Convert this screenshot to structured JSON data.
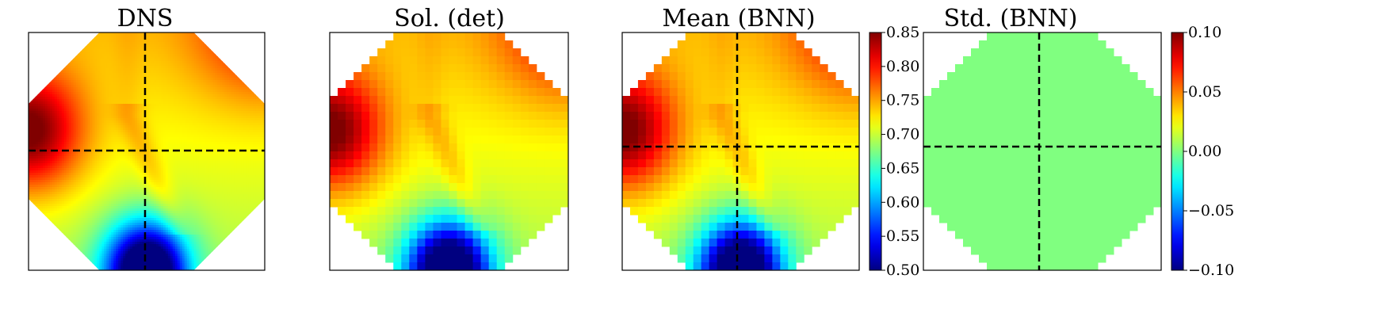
{
  "chart_data": [
    {
      "type": "heatmap",
      "title": "DNS",
      "field": "smooth",
      "clip_shape": "octagon",
      "colormap": "jet",
      "value_range": [
        0.5,
        0.85
      ],
      "crosshair": "dashed lines at domain centre"
    },
    {
      "type": "heatmap",
      "title": "Sol. (det)",
      "field": "pixelated",
      "clip_shape": "stepped octagon",
      "colormap": "jet",
      "value_range": [
        0.5,
        0.85
      ],
      "crosshair": "none"
    },
    {
      "type": "heatmap",
      "title": "Mean (BNN)",
      "field": "pixelated",
      "clip_shape": "stepped octagon",
      "colormap": "jet",
      "value_range": [
        0.5,
        0.85
      ],
      "crosshair": "dashed lines",
      "colorbar": {
        "range": [
          0.5,
          0.85
        ],
        "ticks": [
          0.5,
          0.55,
          0.6,
          0.65,
          0.7,
          0.75,
          0.8,
          0.85
        ],
        "tick_labels": [
          "0.50",
          "0.55",
          "0.60",
          "0.65",
          "0.70",
          "0.75",
          "0.80",
          "0.85"
        ]
      }
    },
    {
      "type": "heatmap",
      "title": "Std. (BNN)",
      "field": "uniform",
      "uniform_value": 0.0,
      "clip_shape": "stepped octagon",
      "colormap": "jet",
      "value_range": [
        -0.1,
        0.1
      ],
      "crosshair": "dashed lines",
      "colorbar": {
        "range": [
          -0.1,
          0.1
        ],
        "ticks": [
          -0.1,
          -0.05,
          0.0,
          0.05,
          0.1
        ],
        "tick_labels": [
          "−0.10",
          "−0.05",
          "0.00",
          "0.05",
          "0.10"
        ]
      }
    }
  ]
}
